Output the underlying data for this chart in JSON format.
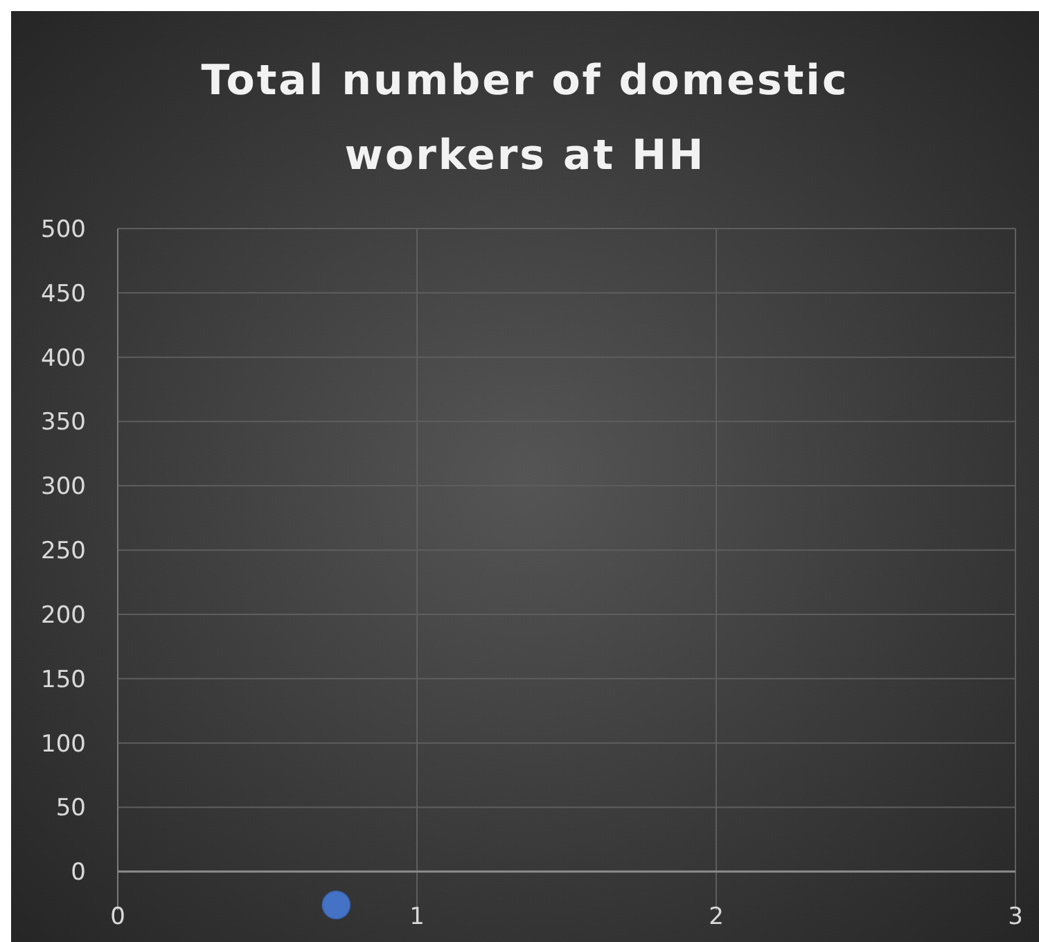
{
  "chart_data": {
    "type": "scatter",
    "title": "Total number of domestic workers at HH",
    "x": [
      0.73
    ],
    "values": [
      -26
    ],
    "color": "#4472c4",
    "marker": "circle",
    "xlim": [
      0,
      3
    ],
    "xticks": [
      0,
      1,
      2,
      3
    ],
    "ylim": [
      -30,
      500
    ],
    "yticks": [
      0,
      50,
      100,
      150,
      200,
      250,
      300,
      350,
      400,
      450,
      500
    ],
    "grid": true
  }
}
